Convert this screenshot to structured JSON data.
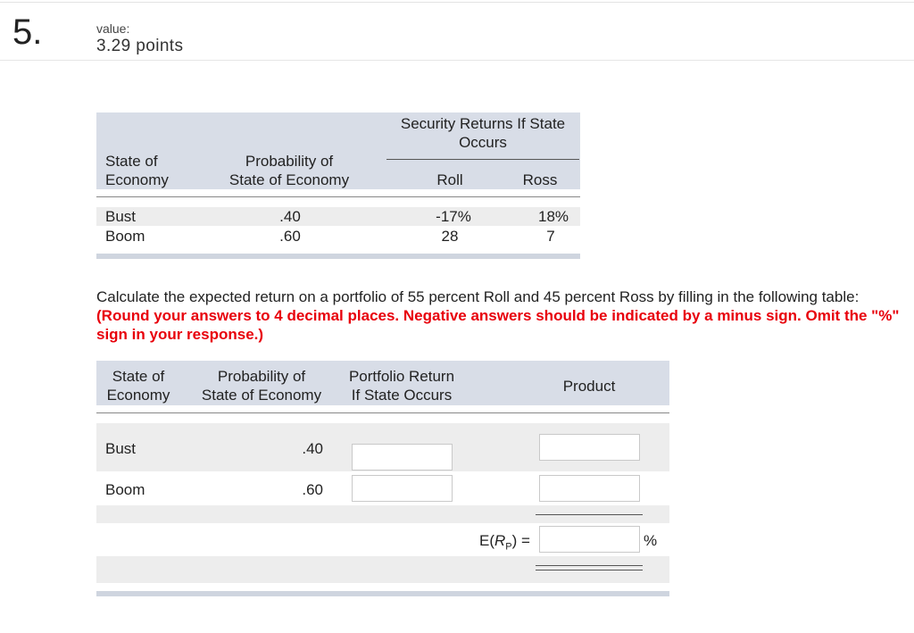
{
  "question": {
    "number": "5.",
    "value_label": "value:",
    "points": "3.29 points"
  },
  "table1": {
    "group_header": "Security Returns If State Occurs",
    "col_state_line1": "State of",
    "col_state_line2": "Economy",
    "col_prob_line1": "Probability of",
    "col_prob_line2": "State of Economy",
    "col_roll": "Roll",
    "col_ross": "Ross",
    "rows": [
      {
        "state": "Bust",
        "prob": ".40",
        "roll": "-17%",
        "ross": "18%"
      },
      {
        "state": "Boom",
        "prob": ".60",
        "roll": "28",
        "ross": "7"
      }
    ]
  },
  "instructions": {
    "text": "Calculate the expected return on a portfolio of 55 percent Roll and 45 percent Ross by filling in the following table: ",
    "highlight": "(Round your answers to 4 decimal places. Negative answers should be indicated by a minus sign. Omit the \"%\" sign in your response.)"
  },
  "table2": {
    "col_state_line1": "State of",
    "col_state_line2": "Economy",
    "col_prob_line1": "Probability of",
    "col_prob_line2": "State of Economy",
    "col_ret_line1": "Portfolio Return",
    "col_ret_line2": "If State Occurs",
    "col_product": "Product",
    "rows": [
      {
        "state": "Bust",
        "prob": ".40",
        "return_value": "",
        "product_value": ""
      },
      {
        "state": "Boom",
        "prob": ".60",
        "return_value": "",
        "product_value": ""
      }
    ],
    "erp_label_prefix": "E(",
    "erp_label_var": "R",
    "erp_label_sub": "P",
    "erp_label_suffix": ") =",
    "erp_value": "",
    "percent_sign": "%"
  }
}
